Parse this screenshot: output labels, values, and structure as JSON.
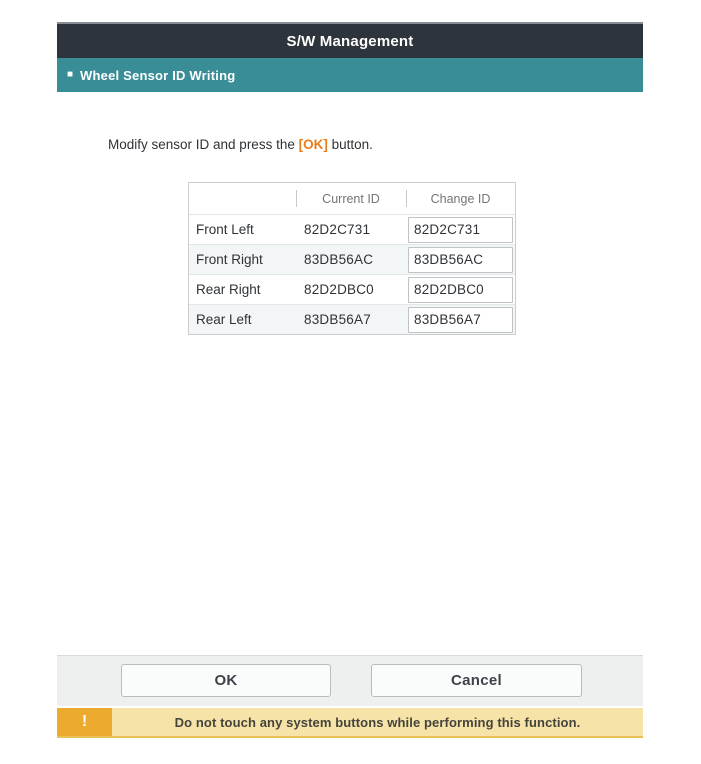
{
  "header": {
    "title": "S/W Management"
  },
  "subheader": {
    "bullet": "■",
    "label": "Wheel Sensor ID Writing"
  },
  "instruction": {
    "prefix": "Modify sensor ID and press the ",
    "highlight": "[OK]",
    "suffix": " button."
  },
  "table": {
    "columns": [
      "",
      "Current ID",
      "Change ID"
    ],
    "rows": [
      {
        "label": "Front Left",
        "current_id": "82D2C731",
        "change_id": "82D2C731"
      },
      {
        "label": "Front Right",
        "current_id": "83DB56AC",
        "change_id": "83DB56AC"
      },
      {
        "label": "Rear Right",
        "current_id": "82D2DBC0",
        "change_id": "82D2DBC0"
      },
      {
        "label": "Rear Left",
        "current_id": "83DB56A7",
        "change_id": "83DB56A7"
      }
    ]
  },
  "footer": {
    "ok_label": "OK",
    "cancel_label": "Cancel"
  },
  "warning": {
    "icon": "!",
    "message": "Do not touch any system buttons while performing this function."
  },
  "colors": {
    "titlebar_bg": "#2d343c",
    "subbar_bg": "#398d96",
    "accent_orange": "#e87d1e",
    "warning_icon_bg": "#ecaa2e",
    "warning_bg": "#f6e3a8",
    "footer_bg": "#eef0f0"
  }
}
